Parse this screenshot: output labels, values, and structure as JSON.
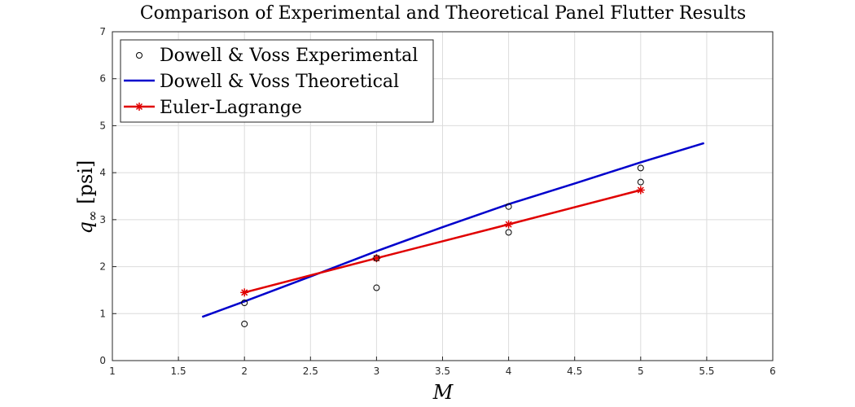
{
  "chart_data": {
    "type": "line",
    "title": "Comparison of Experimental and Theoretical Panel Flutter Results",
    "xlabel": "M",
    "ylabel_main": "q",
    "ylabel_sub": "∞",
    "ylabel_unit": "[psi]",
    "xlim": [
      1,
      6
    ],
    "ylim": [
      0,
      7
    ],
    "xticks": [
      1,
      1.5,
      2,
      2.5,
      3,
      3.5,
      4,
      4.5,
      5,
      5.5,
      6
    ],
    "yticks": [
      0,
      1,
      2,
      3,
      4,
      5,
      6,
      7
    ],
    "grid": true,
    "legend_position": "top-left",
    "series": [
      {
        "name": "Dowell & Voss Experimental",
        "style": "markers",
        "marker": "circle",
        "color": "#000000",
        "x": [
          2,
          2,
          3,
          3,
          4,
          4,
          5,
          5
        ],
        "y": [
          0.78,
          1.23,
          1.55,
          2.18,
          2.73,
          3.28,
          3.8,
          4.1
        ]
      },
      {
        "name": "Dowell & Voss Theoretical",
        "style": "line",
        "color": "#0000cc",
        "x": [
          1.68,
          2.0,
          2.5,
          3.0,
          3.5,
          4.0,
          4.5,
          5.0,
          5.48
        ],
        "y": [
          0.93,
          1.26,
          1.79,
          2.33,
          2.84,
          3.33,
          3.77,
          4.22,
          4.63
        ]
      },
      {
        "name": "Euler-Lagrange",
        "style": "line-markers",
        "marker": "asterisk",
        "color": "#e00000",
        "x": [
          2,
          3,
          4,
          5
        ],
        "y": [
          1.45,
          2.18,
          2.9,
          3.63
        ]
      }
    ]
  }
}
